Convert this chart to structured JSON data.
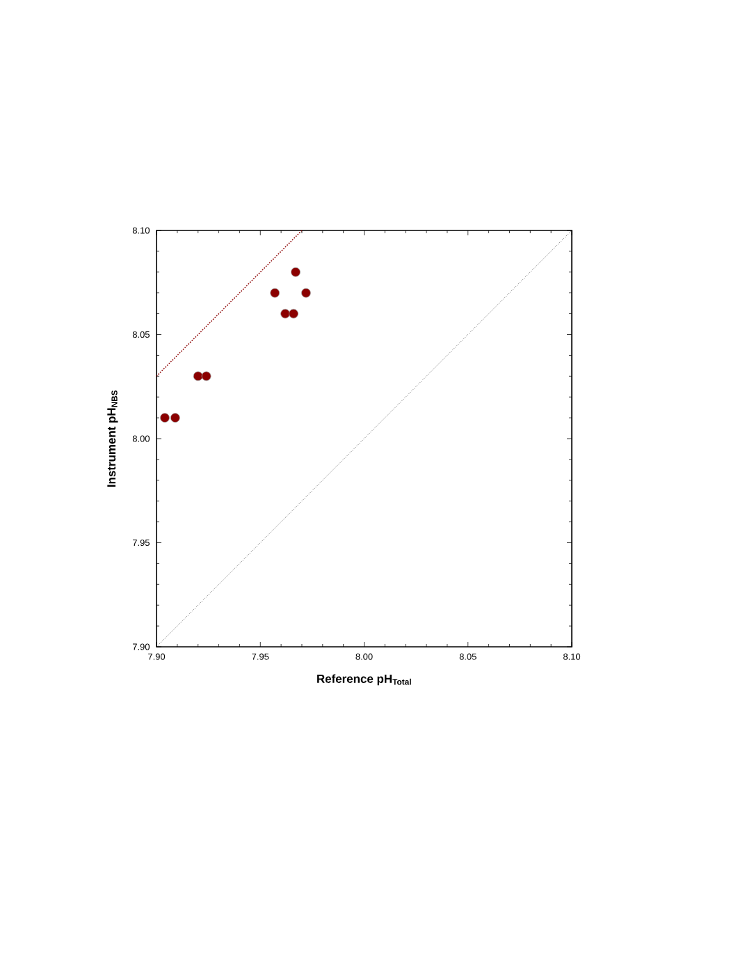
{
  "chart_data": {
    "type": "scatter",
    "xlabel": "**Reference pH$_{Total}$**",
    "ylabel": "**Instrument pH$_{NBS}$**",
    "xlim": [
      7.9,
      8.1
    ],
    "ylim": [
      7.9,
      8.1
    ],
    "xticks": [
      {
        "value": 7.9,
        "label": "7.90"
      },
      {
        "value": 7.95,
        "label": "7.95"
      },
      {
        "value": 8.0,
        "label": "8.00"
      },
      {
        "value": 8.05,
        "label": "8.05"
      },
      {
        "value": 8.1,
        "label": "8.10"
      }
    ],
    "yticks": [
      {
        "value": 7.9,
        "label": "7.90"
      },
      {
        "value": 7.95,
        "label": "7.95"
      },
      {
        "value": 8.0,
        "label": "8.00"
      },
      {
        "value": 8.05,
        "label": "8.05"
      },
      {
        "value": 8.1,
        "label": "8.10"
      }
    ],
    "grid": false,
    "series": [
      {
        "type": "line",
        "color": "#000000",
        "line_style": "dotted",
        "marker": "none",
        "x": [
          7.9,
          8.1
        ],
        "values": [
          7.9,
          8.1
        ]
      },
      {
        "type": "line",
        "color": "#8b0000",
        "line_style": "dotted",
        "marker": "none",
        "x": [
          7.9,
          7.97
        ],
        "values": [
          8.03,
          8.1
        ]
      },
      {
        "color": "#8b0000",
        "marker": "circle",
        "x": [
          7.904,
          7.909,
          7.92,
          7.924,
          7.957,
          7.962,
          7.966,
          7.967,
          7.972
        ],
        "values": [
          8.01,
          8.01,
          8.03,
          8.03,
          8.07,
          8.06,
          8.06,
          8.08,
          8.07
        ]
      }
    ]
  }
}
